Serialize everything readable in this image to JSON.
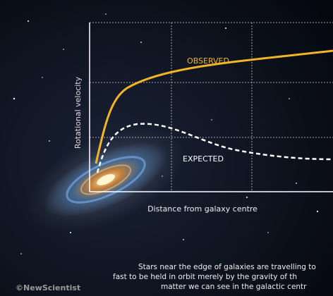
{
  "diagram": {
    "y_axis_label": "Rotational velocity",
    "x_axis_label": "Distance from galaxy centre",
    "observed_label": "OBSERVED",
    "expected_label": "EXPECTED",
    "caption": [
      "Stars near the edge of galaxies are travelling to",
      "fast to be held in orbit merely by the gravity of th",
      "matter we can see in the galactic centr"
    ],
    "credit": "©NewScientist"
  }
}
